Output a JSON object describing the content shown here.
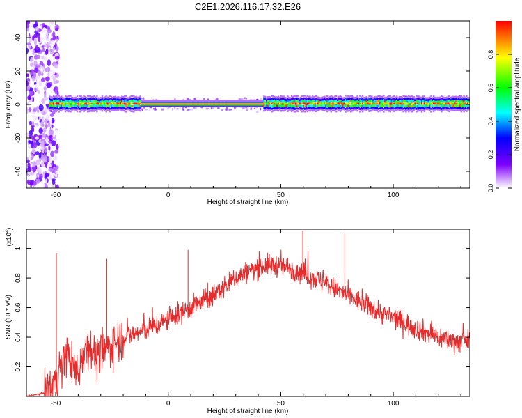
{
  "figure": {
    "title": "C2E1.2026.116.17.32.E26"
  },
  "chart_data": [
    {
      "type": "heatmap",
      "name": "spectrogram",
      "title": "C2E1.2026.116.17.32.E26",
      "xlabel": "Height of straight line (km)",
      "ylabel": "Frequency (Hz)",
      "xlim": [
        -63,
        134
      ],
      "ylim": [
        -50,
        50
      ],
      "xticks": [
        -50,
        0,
        50,
        100
      ],
      "yticks": [
        -40,
        -20,
        0,
        20,
        40
      ],
      "xtick_labels": [
        "-50",
        "0",
        "50",
        "100"
      ],
      "ytick_labels": [
        "-40",
        "-20",
        "0",
        "20",
        "40"
      ],
      "band_center_hz": 0.5,
      "onset_km": -53,
      "colorbar": {
        "label": "Normalized spectral amplitude",
        "range": [
          0,
          1
        ],
        "ticks": [
          0.0,
          0.2,
          0.4,
          0.6,
          0.8
        ],
        "tick_labels": [
          "0.0",
          "0.2",
          "0.4",
          "0.6",
          "0.8"
        ],
        "colors": [
          "#ffffff",
          "#7f00ff",
          "#0000ff",
          "#00ffff",
          "#00ff00",
          "#ffff00",
          "#ff0000"
        ]
      }
    },
    {
      "type": "line",
      "name": "snr",
      "xlabel": "Height of straight line (km)",
      "ylabel": "SNR (10 * v/v)",
      "y_scale_label": "(x10",
      "y_scale_exponent": "4",
      "xlim": [
        -63,
        134
      ],
      "ylim": [
        0,
        1.13
      ],
      "xticks": [
        -50,
        0,
        50,
        100
      ],
      "yticks": [
        0.2,
        0.4,
        0.6,
        0.8,
        1.0
      ],
      "xtick_labels": [
        "-50",
        "0",
        "50",
        "100"
      ],
      "ytick_labels": [
        "0.2",
        "0.4",
        "0.6",
        "0.8",
        "1"
      ],
      "color": "#e52b2b",
      "series": [
        {
          "name": "SNR",
          "x": [
            -63,
            -56,
            -53,
            -50,
            -47,
            -45,
            -43,
            -40,
            -38,
            -35,
            -32,
            -30,
            -28,
            -25,
            -20,
            -15,
            -10,
            -5,
            0,
            5,
            10,
            15,
            20,
            25,
            30,
            35,
            40,
            45,
            50,
            55,
            60,
            65,
            70,
            75,
            80,
            85,
            90,
            95,
            100,
            105,
            110,
            115,
            120,
            125,
            130,
            134
          ],
          "y": [
            0.0,
            0.02,
            0.04,
            0.12,
            0.2,
            0.3,
            0.22,
            0.15,
            0.3,
            0.35,
            0.25,
            0.28,
            0.32,
            0.35,
            0.4,
            0.42,
            0.45,
            0.48,
            0.52,
            0.56,
            0.6,
            0.64,
            0.68,
            0.74,
            0.8,
            0.84,
            0.87,
            0.89,
            0.88,
            0.86,
            0.83,
            0.8,
            0.76,
            0.72,
            0.68,
            0.64,
            0.6,
            0.56,
            0.53,
            0.5,
            0.46,
            0.43,
            0.4,
            0.38,
            0.37,
            0.38
          ]
        }
      ],
      "spikes": [
        {
          "x": -49.7,
          "y": 0.97
        },
        {
          "x": -27.3,
          "y": 0.93
        },
        {
          "x": 8.8,
          "y": 0.99
        },
        {
          "x": 59.8,
          "y": 1.12
        },
        {
          "x": 78.5,
          "y": 1.1
        }
      ]
    }
  ]
}
